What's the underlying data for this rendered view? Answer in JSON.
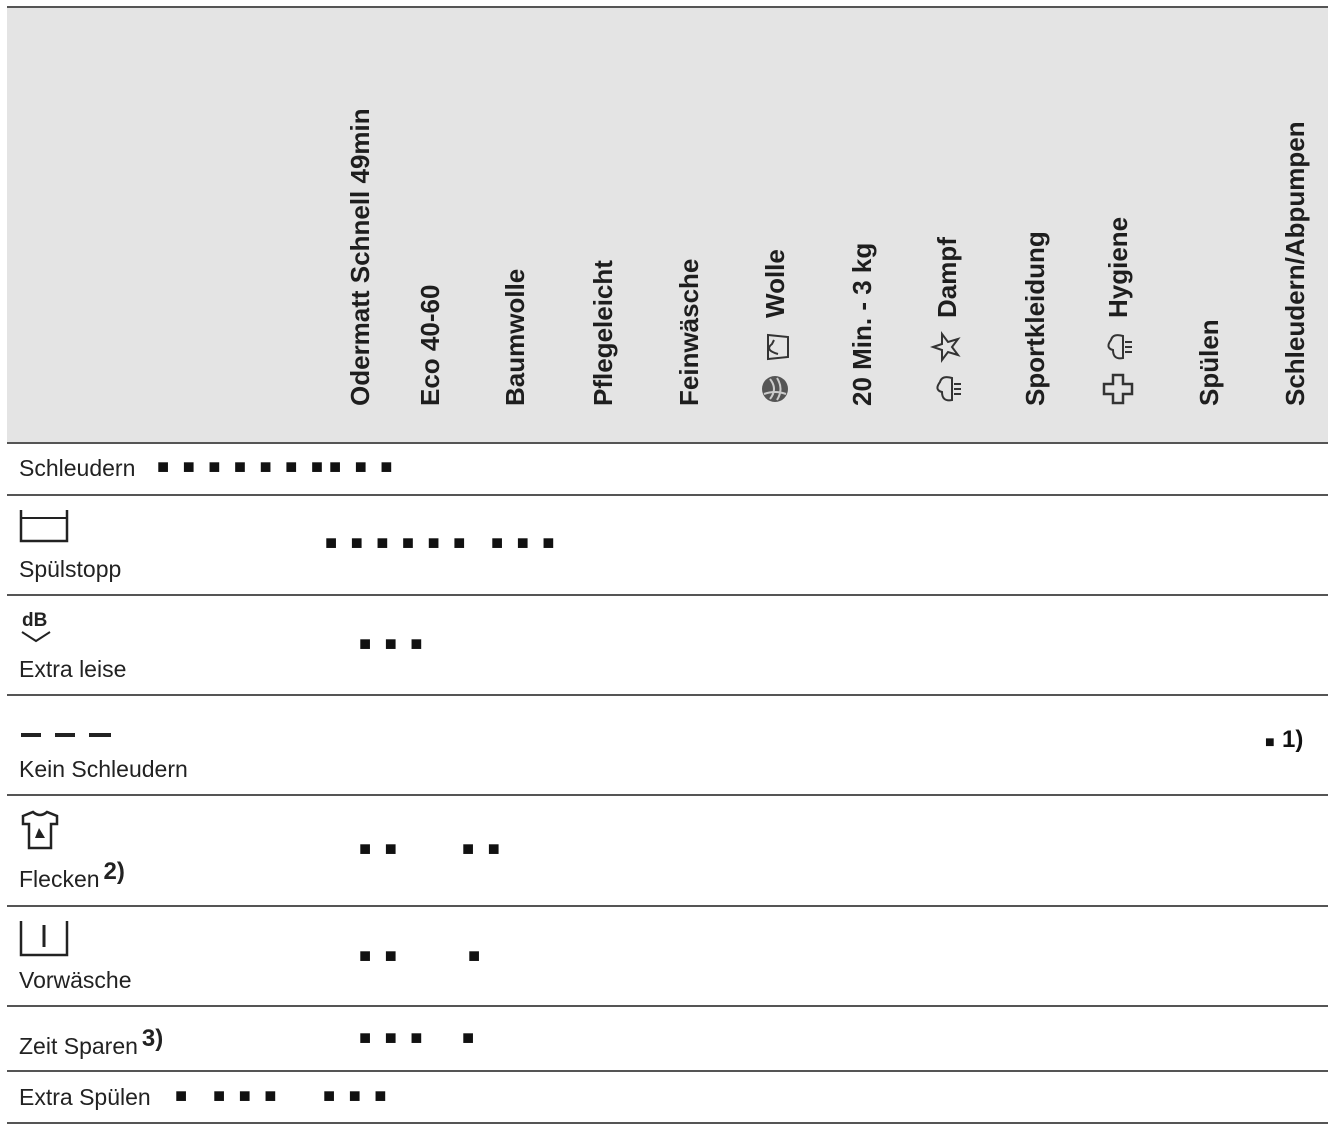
{
  "columns": [
    {
      "label": "Odermatt Schnell 49min"
    },
    {
      "label": "Eco 40-60"
    },
    {
      "label": "Baumwolle"
    },
    {
      "label": "Pflegeleicht"
    },
    {
      "label": "Feinwäsche"
    },
    {
      "label": "Wolle",
      "icons": [
        "wool-ball-icon",
        "handwash-icon"
      ]
    },
    {
      "label": "20 Min. - 3 kg"
    },
    {
      "label": "Dampf",
      "icons": [
        "steam-icon",
        "steam-star-icon"
      ]
    },
    {
      "label": "Sportkleidung"
    },
    {
      "label": "Hygiene",
      "icons": [
        "hygiene-cross-icon",
        "steam-icon"
      ]
    },
    {
      "label": "Spülen"
    },
    {
      "label": "Schleudern/Abpumpen"
    }
  ],
  "rows": [
    {
      "label": "Schleudern",
      "dots": [
        "■ ■ ■ ■ ■ ■ ■",
        "■ ■ ■"
      ]
    },
    {
      "label": "Spülstopp",
      "icon": "rinse-hold-icon",
      "dots": [
        "■ ■ ■ ■ ■ ■",
        "■ ■ ■"
      ]
    },
    {
      "label": "Extra leise",
      "icon": "db-quiet-icon",
      "dots": [
        "■ ■ ■"
      ]
    },
    {
      "label": "Kein Schleudern",
      "icon": "no-spin-dashes-icon",
      "note": "1)",
      "note_dot": "■"
    },
    {
      "label": "Flecken",
      "icon": "stain-shirt-icon",
      "sup": "2)",
      "dots": [
        "■ ■",
        "■ ■"
      ]
    },
    {
      "label": "Vorwäsche",
      "icon": "prewash-icon",
      "dots": [
        "■ ■",
        "■"
      ]
    },
    {
      "label": "Zeit Sparen",
      "sup": "3)",
      "dots": [
        "■ ■ ■",
        "■"
      ]
    },
    {
      "label": "Extra Spülen",
      "dots": [
        "■",
        "■ ■ ■",
        "■ ■ ■"
      ]
    }
  ]
}
